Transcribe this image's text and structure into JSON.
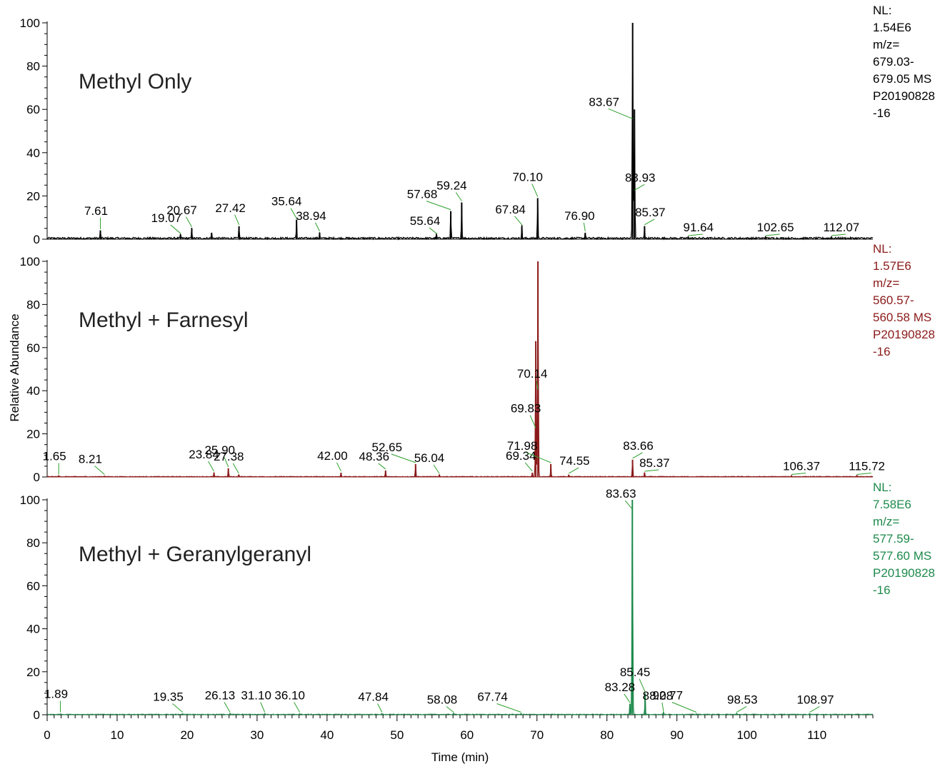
{
  "chart_data": {
    "type": "line",
    "xlabel": "Time (min)",
    "ylabel": "Relative Abundance",
    "xlim": [
      0,
      118
    ],
    "x_ticks": [
      0,
      10,
      20,
      30,
      40,
      50,
      60,
      70,
      80,
      90,
      100,
      110
    ],
    "y_ticks": [
      0,
      20,
      40,
      60,
      80,
      100
    ],
    "panels": [
      {
        "title": "Methyl Only",
        "color": "#000000",
        "nl_info": [
          "NL:",
          "1.54E6",
          "m/z=",
          "679.03-",
          "679.05  MS",
          "P20190828",
          "-16"
        ],
        "ylim": [
          0,
          100
        ],
        "peaks": [
          {
            "x": 7.61,
            "y": 4
          },
          {
            "x": 19.07,
            "y": 2
          },
          {
            "x": 20.67,
            "y": 5
          },
          {
            "x": 23.5,
            "y": 3
          },
          {
            "x": 27.42,
            "y": 6
          },
          {
            "x": 35.64,
            "y": 9
          },
          {
            "x": 38.94,
            "y": 3
          },
          {
            "x": 55.64,
            "y": 2
          },
          {
            "x": 57.68,
            "y": 13
          },
          {
            "x": 59.24,
            "y": 17
          },
          {
            "x": 67.84,
            "y": 6
          },
          {
            "x": 70.1,
            "y": 19
          },
          {
            "x": 76.9,
            "y": 3
          },
          {
            "x": 83.67,
            "y": 100
          },
          {
            "x": 83.93,
            "y": 60
          },
          {
            "x": 85.37,
            "y": 6
          },
          {
            "x": 91.64,
            "y": 1
          },
          {
            "x": 102.65,
            "y": 1
          },
          {
            "x": 112.07,
            "y": 1
          }
        ],
        "labels": [
          {
            "text": "7.61",
            "x": 7.61,
            "y": 4
          },
          {
            "text": "19.07",
            "x": 19.07,
            "y": 2
          },
          {
            "text": "20.67",
            "x": 20.67,
            "y": 5
          },
          {
            "text": "27.42",
            "x": 27.42,
            "y": 6
          },
          {
            "text": "35.64",
            "x": 35.64,
            "y": 9
          },
          {
            "text": "38.94",
            "x": 38.94,
            "y": 3
          },
          {
            "text": "55.64",
            "x": 55.64,
            "y": 2
          },
          {
            "text": "57.68",
            "x": 57.68,
            "y": 13
          },
          {
            "text": "59.24",
            "x": 59.24,
            "y": 17
          },
          {
            "text": "67.84",
            "x": 67.84,
            "y": 6
          },
          {
            "text": "70.10",
            "x": 70.1,
            "y": 19
          },
          {
            "text": "76.90",
            "x": 76.9,
            "y": 3
          },
          {
            "text": "83.67",
            "x": 83.67,
            "y": 55
          },
          {
            "text": "83.93",
            "x": 83.93,
            "y": 22
          },
          {
            "text": "85.37",
            "x": 85.37,
            "y": 6
          },
          {
            "text": "91.64",
            "x": 91.64,
            "y": 1
          },
          {
            "text": "102.65",
            "x": 102.65,
            "y": 1
          },
          {
            "text": "112.07",
            "x": 112.07,
            "y": 1
          }
        ]
      },
      {
        "title": "Methyl + Farnesyl",
        "color": "#8b1a1a",
        "nl_info": [
          "NL:",
          "1.57E6",
          "m/z=",
          "560.57-",
          "560.58  MS",
          "P20190828",
          "-16"
        ],
        "ylim": [
          0,
          100
        ],
        "peaks": [
          {
            "x": 1.65,
            "y": 0.5
          },
          {
            "x": 8.21,
            "y": 0.5
          },
          {
            "x": 23.84,
            "y": 2
          },
          {
            "x": 25.9,
            "y": 4
          },
          {
            "x": 27.38,
            "y": 1
          },
          {
            "x": 42.0,
            "y": 2
          },
          {
            "x": 48.36,
            "y": 3
          },
          {
            "x": 52.65,
            "y": 6
          },
          {
            "x": 56.04,
            "y": 1
          },
          {
            "x": 69.34,
            "y": 2
          },
          {
            "x": 69.83,
            "y": 63
          },
          {
            "x": 70.14,
            "y": 100
          },
          {
            "x": 71.98,
            "y": 6
          },
          {
            "x": 74.55,
            "y": 1
          },
          {
            "x": 83.66,
            "y": 8
          },
          {
            "x": 85.37,
            "y": 2
          },
          {
            "x": 106.37,
            "y": 0.5
          },
          {
            "x": 115.72,
            "y": 0.5
          }
        ],
        "labels": [
          {
            "text": "1.65",
            "x": 1.65,
            "y": 0.5
          },
          {
            "text": "8.21",
            "x": 8.21,
            "y": 0.5
          },
          {
            "text": "23.84",
            "x": 23.84,
            "y": 2
          },
          {
            "text": "25.90",
            "x": 25.9,
            "y": 4
          },
          {
            "text": "27.38",
            "x": 27.38,
            "y": 1
          },
          {
            "text": "42.00",
            "x": 42.0,
            "y": 2
          },
          {
            "text": "48.36",
            "x": 48.36,
            "y": 3
          },
          {
            "text": "52.65",
            "x": 52.65,
            "y": 6
          },
          {
            "text": "56.04",
            "x": 56.04,
            "y": 1
          },
          {
            "text": "69.34",
            "x": 69.34,
            "y": 2
          },
          {
            "text": "69.83",
            "x": 69.83,
            "y": 22
          },
          {
            "text": "70.14",
            "x": 70.14,
            "y": 40
          },
          {
            "text": "71.98",
            "x": 71.98,
            "y": 6
          },
          {
            "text": "74.55",
            "x": 74.55,
            "y": 1
          },
          {
            "text": "83.66",
            "x": 83.66,
            "y": 8
          },
          {
            "text": "85.37",
            "x": 85.37,
            "y": 2
          },
          {
            "text": "106.37",
            "x": 106.37,
            "y": 0.5
          },
          {
            "text": "115.72",
            "x": 115.72,
            "y": 0.5
          }
        ]
      },
      {
        "title": "Methyl + Geranylgeranyl",
        "color": "#1e8a4c",
        "nl_info": [
          "NL:",
          "7.58E6",
          "m/z=",
          "577.59-",
          "577.60  MS",
          "P20190828",
          "-16"
        ],
        "ylim": [
          0,
          100
        ],
        "peaks": [
          {
            "x": 1.89,
            "y": 0.5
          },
          {
            "x": 19.35,
            "y": 0.5
          },
          {
            "x": 26.13,
            "y": 0.5
          },
          {
            "x": 31.1,
            "y": 0.5
          },
          {
            "x": 36.1,
            "y": 0.5
          },
          {
            "x": 47.84,
            "y": 0.5
          },
          {
            "x": 58.08,
            "y": 0.5
          },
          {
            "x": 67.74,
            "y": 0.5
          },
          {
            "x": 83.28,
            "y": 5
          },
          {
            "x": 83.63,
            "y": 100
          },
          {
            "x": 85.45,
            "y": 10
          },
          {
            "x": 88.08,
            "y": 1
          },
          {
            "x": 92.77,
            "y": 0.5
          },
          {
            "x": 98.53,
            "y": 0.5
          },
          {
            "x": 108.97,
            "y": 0.5
          }
        ],
        "labels": [
          {
            "text": "1.89",
            "x": 1.89,
            "y": 0.5
          },
          {
            "text": "19.35",
            "x": 19.35,
            "y": 0.5
          },
          {
            "text": "26.13",
            "x": 26.13,
            "y": 0.5
          },
          {
            "text": "31.10",
            "x": 31.1,
            "y": 0.5
          },
          {
            "text": "36.10",
            "x": 36.1,
            "y": 0.5
          },
          {
            "text": "47.84",
            "x": 47.84,
            "y": 0.5
          },
          {
            "text": "58.08",
            "x": 58.08,
            "y": 0.5
          },
          {
            "text": "67.74",
            "x": 67.74,
            "y": 0.5
          },
          {
            "text": "83.28",
            "x": 83.28,
            "y": 5
          },
          {
            "text": "83.63",
            "x": 83.63,
            "y": 95
          },
          {
            "text": "85.45",
            "x": 85.45,
            "y": 10
          },
          {
            "text": "88.08",
            "x": 88.08,
            "y": 1
          },
          {
            "text": "92.77",
            "x": 92.77,
            "y": 0.5
          },
          {
            "text": "98.53",
            "x": 98.53,
            "y": 0.5
          },
          {
            "text": "108.97",
            "x": 108.97,
            "y": 0.5
          }
        ]
      }
    ]
  }
}
